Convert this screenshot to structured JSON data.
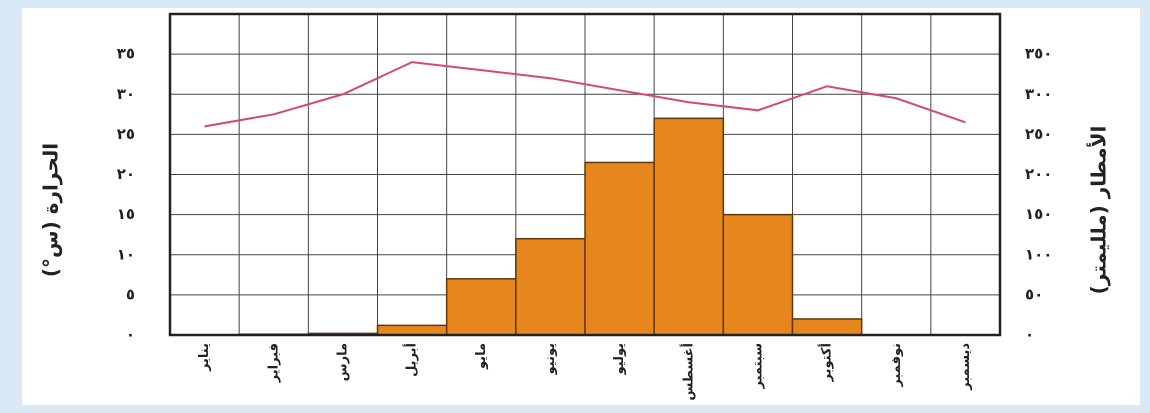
{
  "chart_data": {
    "type": "bar-line",
    "categories": [
      "يناير",
      "فبراير",
      "مارس",
      "أبريل",
      "مايو",
      "يونيو",
      "يوليو",
      "أغسطس",
      "سبتمبر",
      "أكتوبر",
      "نوفمبر",
      "ديسمبر"
    ],
    "series": [
      {
        "type": "bar",
        "axis": "y2",
        "color": "#e8861e",
        "values": [
          0,
          1,
          2,
          12,
          70,
          120,
          215,
          270,
          150,
          20,
          0,
          0
        ]
      },
      {
        "type": "line",
        "color": "#d6496c",
        "values": [
          26,
          27.5,
          30,
          34,
          33,
          32,
          30.5,
          29,
          28,
          31,
          29.5,
          26.5
        ]
      }
    ],
    "ylabel": "الحرارة (س°)",
    "y2label": "الأمطار (ملليمتر)",
    "ylim": [
      0,
      40
    ],
    "yticks": [
      {
        "value": 0,
        "label": "٠"
      },
      {
        "value": 5,
        "label": "٥"
      },
      {
        "value": 10,
        "label": "١٠"
      },
      {
        "value": 15,
        "label": "١٥"
      },
      {
        "value": 20,
        "label": "٢٠"
      },
      {
        "value": 25,
        "label": "٢٥"
      },
      {
        "value": 30,
        "label": "٣٠"
      },
      {
        "value": 35,
        "label": "٣٥"
      }
    ],
    "y2lim": [
      0,
      400
    ],
    "y2ticks": [
      {
        "value": 0,
        "label": "٠"
      },
      {
        "value": 50,
        "label": "٥٠"
      },
      {
        "value": 100,
        "label": "١٠٠"
      },
      {
        "value": 150,
        "label": "١٥٠"
      },
      {
        "value": 200,
        "label": "٢٠٠"
      },
      {
        "value": 250,
        "label": "٢٥٠"
      },
      {
        "value": 300,
        "label": "٣٠٠"
      },
      {
        "value": 350,
        "label": "٣٥٠"
      }
    ],
    "grid": true
  }
}
